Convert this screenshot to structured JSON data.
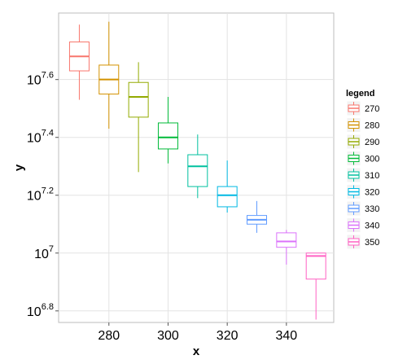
{
  "chart_data": {
    "type": "box",
    "xlabel": "x",
    "ylabel": "y",
    "y_scale": "log10",
    "xlim": [
      263,
      356
    ],
    "ylim_log10": [
      6.76,
      7.83
    ],
    "x_ticks": [
      280,
      300,
      320,
      340
    ],
    "y_ticks": [
      {
        "base": "10",
        "exp": "6.8",
        "value": 6.8
      },
      {
        "base": "10",
        "exp": "7",
        "value": 7.0
      },
      {
        "base": "10",
        "exp": "7.2",
        "value": 7.2
      },
      {
        "base": "10",
        "exp": "7.4",
        "value": 7.4
      },
      {
        "base": "10",
        "exp": "7.6",
        "value": 7.6
      }
    ],
    "grid": true,
    "legend": {
      "title": "legend",
      "placement": "right"
    },
    "series": [
      {
        "name": "270",
        "x": 270,
        "color": "#F8766D",
        "min": 7.53,
        "q1": 7.63,
        "median": 7.68,
        "q3": 7.73,
        "max": 7.79
      },
      {
        "name": "280",
        "x": 280,
        "color": "#D39200",
        "min": 7.43,
        "q1": 7.55,
        "median": 7.6,
        "q3": 7.65,
        "max": 7.8
      },
      {
        "name": "290",
        "x": 290,
        "color": "#93AA00",
        "min": 7.28,
        "q1": 7.47,
        "median": 7.54,
        "q3": 7.59,
        "max": 7.66
      },
      {
        "name": "300",
        "x": 300,
        "color": "#00BA38",
        "min": 7.31,
        "q1": 7.36,
        "median": 7.4,
        "q3": 7.45,
        "max": 7.54
      },
      {
        "name": "310",
        "x": 310,
        "color": "#00C19F",
        "min": 7.19,
        "q1": 7.23,
        "median": 7.3,
        "q3": 7.34,
        "max": 7.41
      },
      {
        "name": "320",
        "x": 320,
        "color": "#00B9E3",
        "min": 7.14,
        "q1": 7.16,
        "median": 7.2,
        "q3": 7.23,
        "max": 7.32
      },
      {
        "name": "330",
        "x": 330,
        "color": "#619CFF",
        "min": 7.07,
        "q1": 7.1,
        "median": 7.115,
        "q3": 7.13,
        "max": 7.18
      },
      {
        "name": "340",
        "x": 340,
        "color": "#DB72FB",
        "min": 6.96,
        "q1": 7.02,
        "median": 7.04,
        "q3": 7.07,
        "max": 7.08
      },
      {
        "name": "350",
        "x": 350,
        "color": "#FF61C3",
        "min": 6.77,
        "q1": 6.91,
        "median": 6.99,
        "q3": 7.0,
        "max": 7.0
      }
    ]
  }
}
